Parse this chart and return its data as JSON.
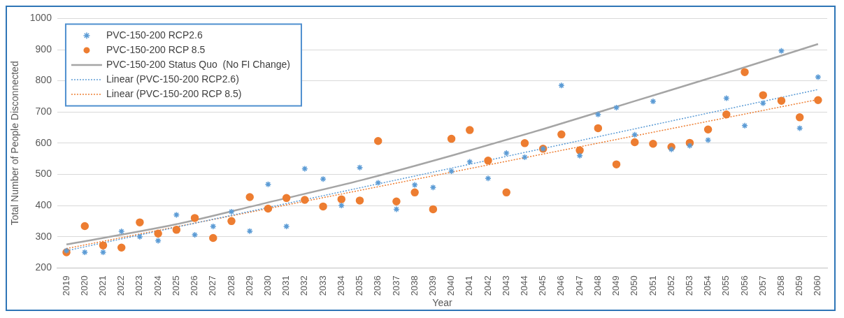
{
  "chart_data": {
    "type": "scatter",
    "xlabel": "Year",
    "ylabel": "Total Number of People Disconnected",
    "x": [
      2019,
      2020,
      2021,
      2022,
      2023,
      2024,
      2025,
      2026,
      2027,
      2028,
      2029,
      2030,
      2031,
      2032,
      2033,
      2034,
      2035,
      2036,
      2037,
      2038,
      2039,
      2040,
      2041,
      2042,
      2043,
      2044,
      2045,
      2046,
      2047,
      2048,
      2049,
      2050,
      2051,
      2052,
      2053,
      2054,
      2055,
      2056,
      2057,
      2058,
      2059,
      2060
    ],
    "series": [
      {
        "name": "PVC-150-200 RCP2.6",
        "marker": "cross",
        "color": "#5b9bd5",
        "values": [
          255,
          250,
          250,
          317,
          300,
          287,
          370,
          306,
          333,
          380,
          318,
          468,
          333,
          518,
          485,
          400,
          522,
          473,
          388,
          466,
          458,
          510,
          540,
          487,
          568,
          555,
          582,
          785,
          560,
          692,
          714,
          627,
          734,
          580,
          592,
          610,
          744,
          656,
          728,
          896,
          648,
          812
        ]
      },
      {
        "name": "PVC-150-200 RCP 8.5",
        "marker": "circle",
        "color": "#ed7d31",
        "values": [
          250,
          334,
          272,
          265,
          346,
          310,
          322,
          360,
          296,
          350,
          427,
          390,
          424,
          418,
          397,
          420,
          416,
          607,
          413,
          442,
          388,
          614,
          642,
          544,
          442,
          600,
          582,
          628,
          577,
          648,
          532,
          603,
          598,
          588,
          601,
          644,
          692,
          828,
          754,
          736,
          683,
          738
        ]
      },
      {
        "name": "PVC-150-200 Status Quo  (No FI Change)",
        "type": "line",
        "line_style": "solid",
        "color": "#a5a5a5",
        "x": [
          2019,
          2025,
          2030,
          2035,
          2040,
          2045,
          2050,
          2055,
          2060
        ],
        "values": [
          275,
          340,
          410,
          480,
          560,
          645,
          735,
          825,
          918
        ]
      },
      {
        "name": "Linear (PVC-150-200 RCP2.6)",
        "type": "line",
        "line_style": "dotted",
        "color": "#5b9bd5",
        "x": [
          2019,
          2060
        ],
        "values": [
          255,
          772
        ]
      },
      {
        "name": "Linear (PVC-150-200 RCP 8.5)",
        "type": "line",
        "line_style": "dotted",
        "color": "#ed7d31",
        "x": [
          2019,
          2060
        ],
        "values": [
          262,
          740
        ]
      }
    ],
    "xlim": [
      2018.5,
      2060.5
    ],
    "xticks": [
      2019,
      2020,
      2021,
      2022,
      2023,
      2024,
      2025,
      2026,
      2027,
      2028,
      2029,
      2030,
      2031,
      2032,
      2033,
      2034,
      2035,
      2036,
      2037,
      2038,
      2039,
      2040,
      2041,
      2042,
      2043,
      2044,
      2045,
      2046,
      2047,
      2048,
      2049,
      2050,
      2051,
      2052,
      2053,
      2054,
      2055,
      2056,
      2057,
      2058,
      2059,
      2060
    ],
    "ylim": [
      200,
      1000
    ],
    "yticks": [
      200,
      300,
      400,
      500,
      600,
      700,
      800,
      900,
      1000
    ],
    "grid": "y",
    "legend": "top left"
  }
}
